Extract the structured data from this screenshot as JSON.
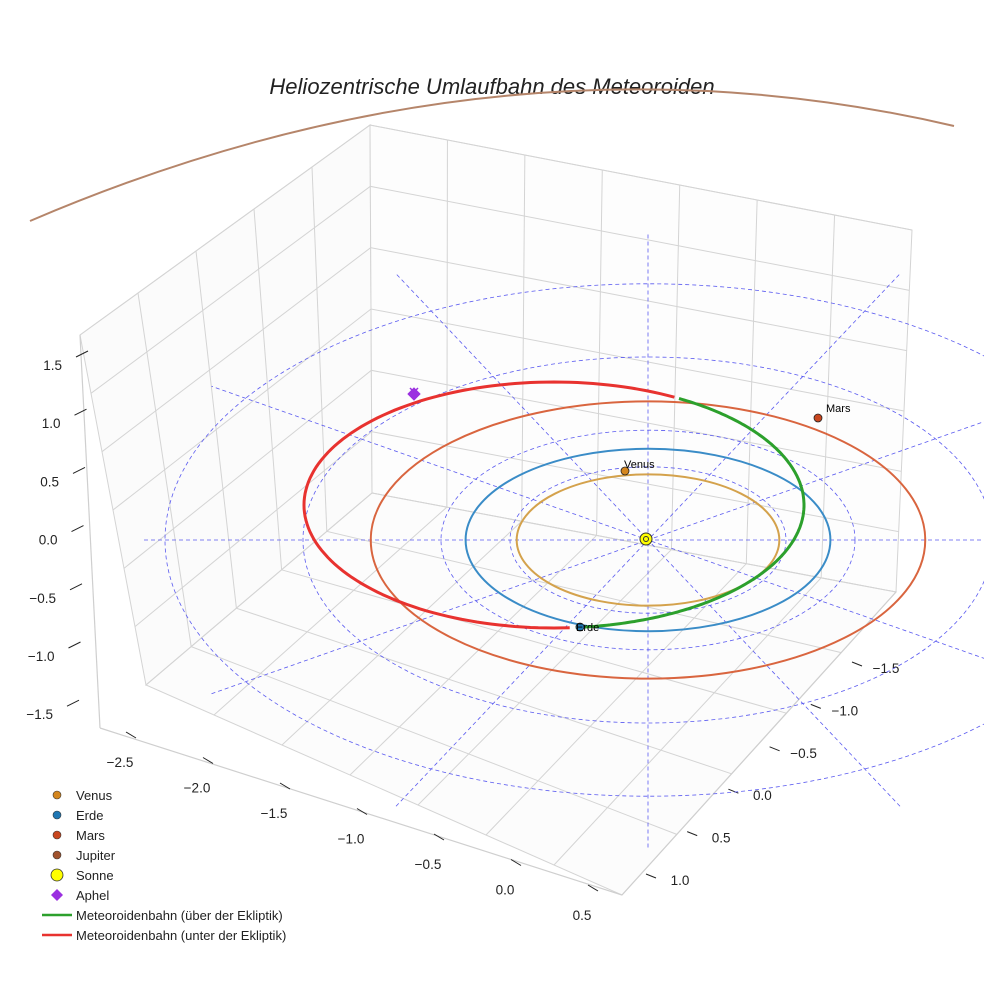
{
  "chart_data": {
    "type": "line3d",
    "title": "Heliozentrische Umlaufbahn des Meteoroiden",
    "x_ticks": [
      "−2.5",
      "−2.0",
      "−1.5",
      "−1.0",
      "−0.5",
      "0.0",
      "0.5"
    ],
    "y_ticks": [
      "−1.5",
      "−1.0",
      "−0.5",
      "0.0",
      "0.5",
      "1.0"
    ],
    "z_ticks": [
      "1.5",
      "1.0",
      "0.5",
      "0.0",
      "−0.5",
      "−1.0",
      "−1.5"
    ],
    "xlim": [
      -2.75,
      0.6
    ],
    "ylim": [
      -1.7,
      1.1
    ],
    "zlim": [
      -1.7,
      1.7
    ],
    "orbits": [
      {
        "name": "Venus",
        "radius_au": 0.72,
        "color": "#d4a24c"
      },
      {
        "name": "Erde",
        "radius_au": 1.0,
        "color": "#3a8cc7"
      },
      {
        "name": "Mars",
        "radius_au": 1.52,
        "color": "#d9653f"
      },
      {
        "name": "Jupiter",
        "radius_au": 5.2,
        "color": "#b5856a"
      }
    ],
    "reference_circles_au": [
      1.0,
      1.5,
      2.5,
      3.5
    ],
    "meteoroid_orbit": {
      "perihelion_au": 0.99,
      "aphelion_au": 2.55,
      "above_ecliptic_label": "Meteoroidenbahn (über der Ekliptik)",
      "below_ecliptic_label": "Meteoroidenbahn (unter der Ekliptik)",
      "above_color": "#2ca02c",
      "below_color": "#e8322f"
    },
    "points": [
      {
        "name": "Venus",
        "label": "Venus",
        "color": "#d4861e"
      },
      {
        "name": "Erde",
        "label": "Erde",
        "color": "#1f77b4"
      },
      {
        "name": "Mars",
        "label": "Mars",
        "color": "#c8461e"
      },
      {
        "name": "Sonne",
        "color": "#ffff00"
      },
      {
        "name": "Aphel",
        "color": "#9b30e0"
      }
    ],
    "legend": [
      {
        "label": "Venus",
        "marker": "circle",
        "color": "#d4861e"
      },
      {
        "label": "Erde",
        "marker": "circle",
        "color": "#1f77b4"
      },
      {
        "label": "Mars",
        "marker": "circle",
        "color": "#c8461e"
      },
      {
        "label": "Jupiter",
        "marker": "circle",
        "color": "#a0522d"
      },
      {
        "label": "Sonne",
        "marker": "circle-large",
        "color": "#ffff00"
      },
      {
        "label": "Aphel",
        "marker": "diamond",
        "color": "#9b30e0"
      },
      {
        "label": "Meteoroidenbahn (über der Ekliptik)",
        "marker": "line",
        "color": "#2ca02c"
      },
      {
        "label": "Meteoroidenbahn (unter der Ekliptik)",
        "marker": "line",
        "color": "#e8322f"
      }
    ]
  }
}
